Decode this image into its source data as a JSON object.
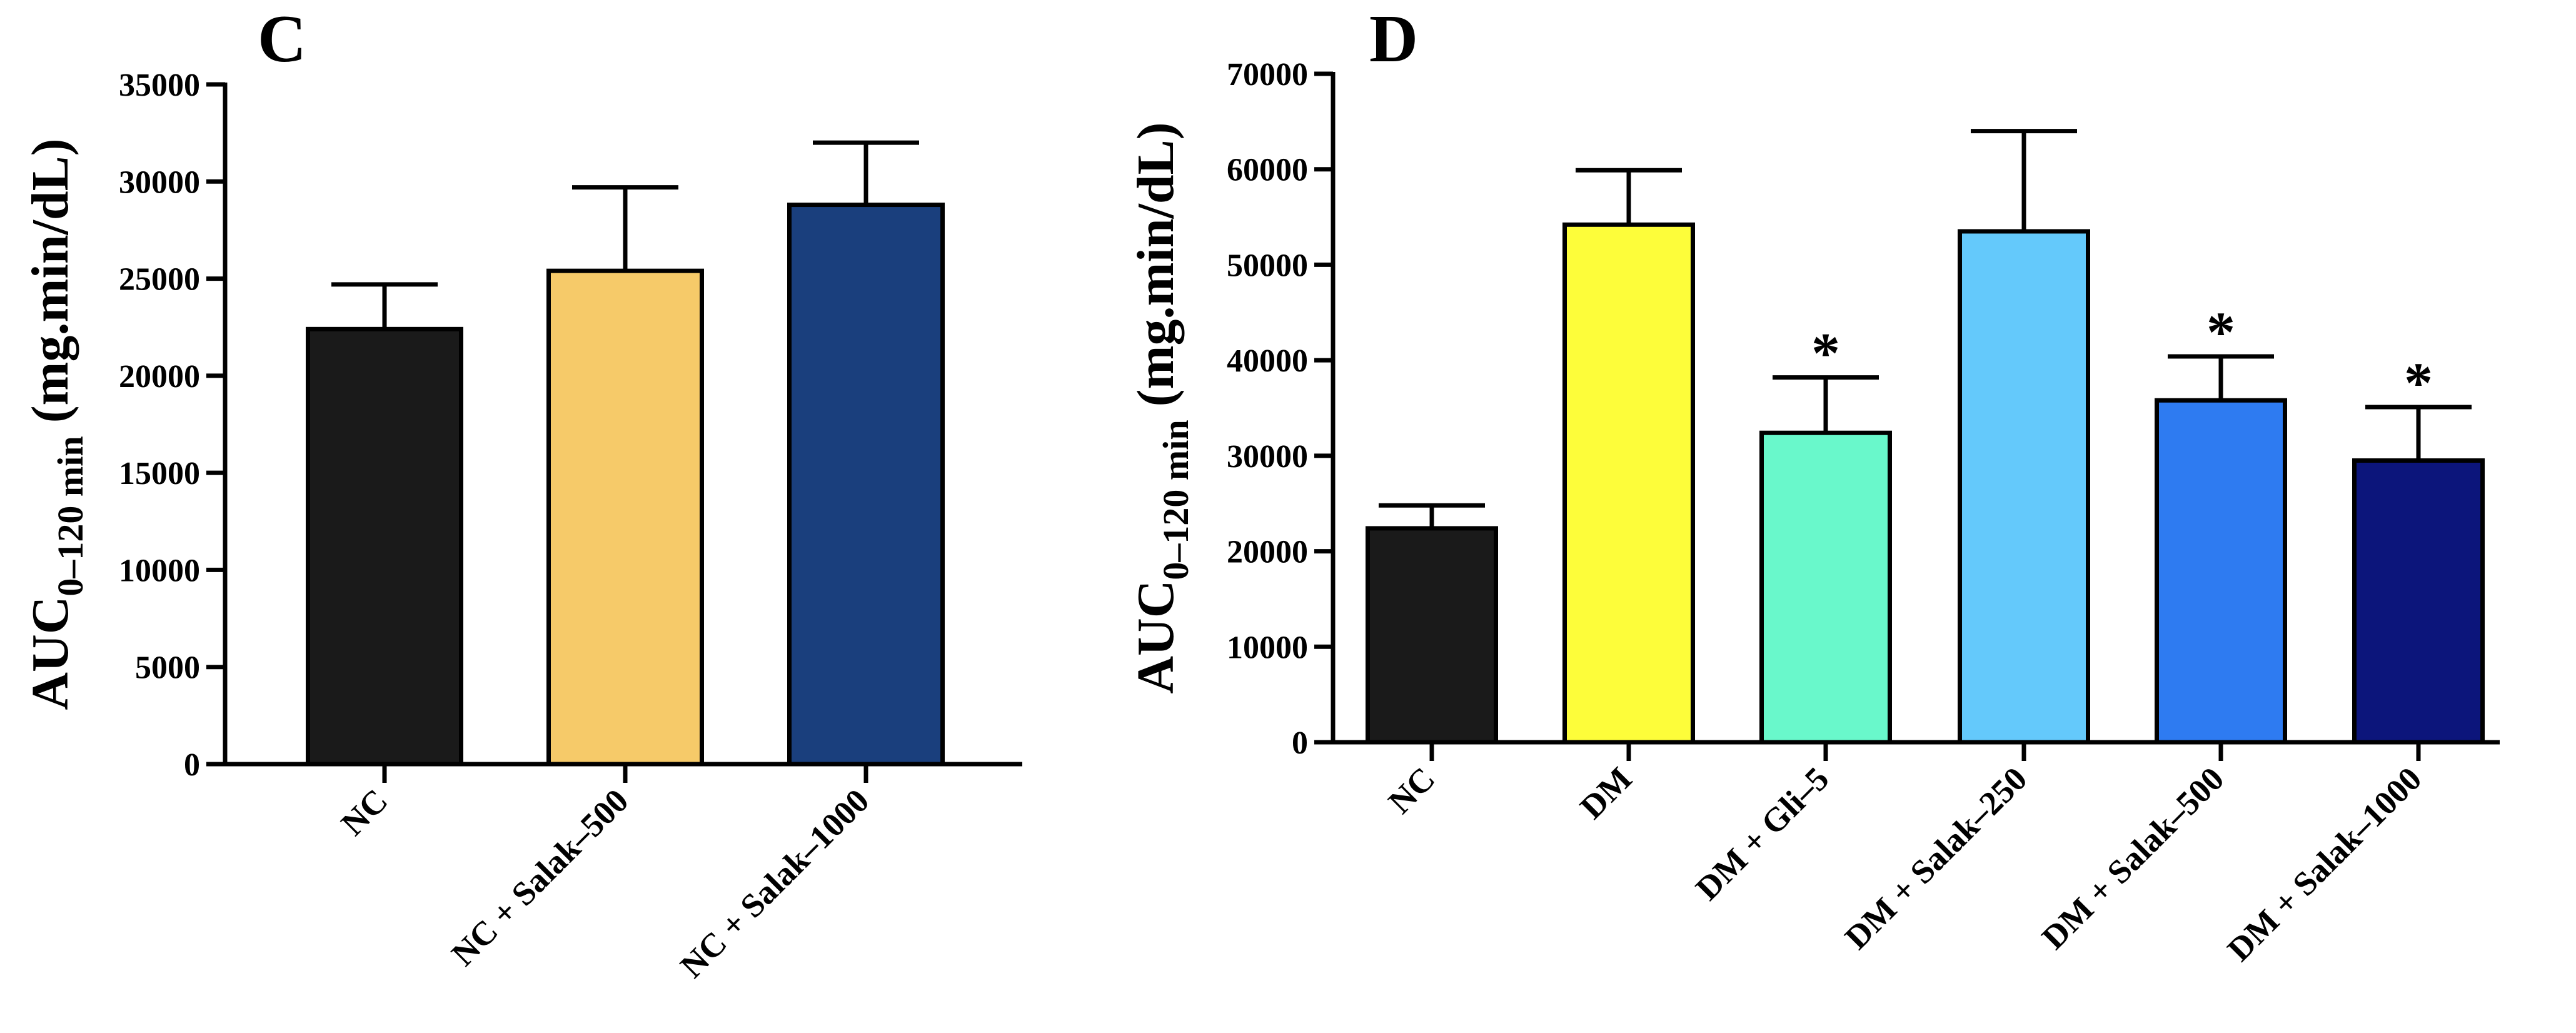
{
  "chart_data": [
    {
      "panel_label": "C",
      "type": "bar",
      "title": "",
      "xlabel": "",
      "ylabel_main": "AUC",
      "ylabel_sub": "0–120 min",
      "ylabel_unit": " (mg.min/dL)",
      "ylim": [
        0,
        35000
      ],
      "yticks": [
        0,
        5000,
        10000,
        15000,
        20000,
        25000,
        30000,
        35000
      ],
      "categories": [
        "NC",
        "NC + Salak–500",
        "NC + Salak–1000"
      ],
      "values": [
        22400,
        25400,
        28800
      ],
      "errors": [
        2300,
        4300,
        3200
      ],
      "colors": [
        "#1a1a1a",
        "#f6ca69",
        "#1a3f7d"
      ],
      "significance": [
        "",
        "",
        ""
      ]
    },
    {
      "panel_label": "D",
      "type": "bar",
      "title": "",
      "xlabel": "",
      "ylabel_main": "AUC",
      "ylabel_sub": "0–120 min",
      "ylabel_unit": " (mg.min/dL)",
      "ylim": [
        0,
        70000
      ],
      "yticks": [
        0,
        10000,
        20000,
        30000,
        40000,
        50000,
        60000,
        70000
      ],
      "categories": [
        "NC",
        "DM",
        "DM + Gli–5",
        "DM + Salak–250",
        "DM + Salak–500",
        "DM + Salak–1000"
      ],
      "values": [
        22400,
        54200,
        32400,
        53500,
        35800,
        29500
      ],
      "errors": [
        2400,
        5700,
        5800,
        10500,
        4600,
        5600
      ],
      "colors": [
        "#1a1a1a",
        "#fdfd3a",
        "#69f8cb",
        "#64c9fb",
        "#2e7bf1",
        "#0c157b"
      ],
      "significance": [
        "",
        "",
        "*",
        "",
        "*",
        "*"
      ]
    }
  ]
}
